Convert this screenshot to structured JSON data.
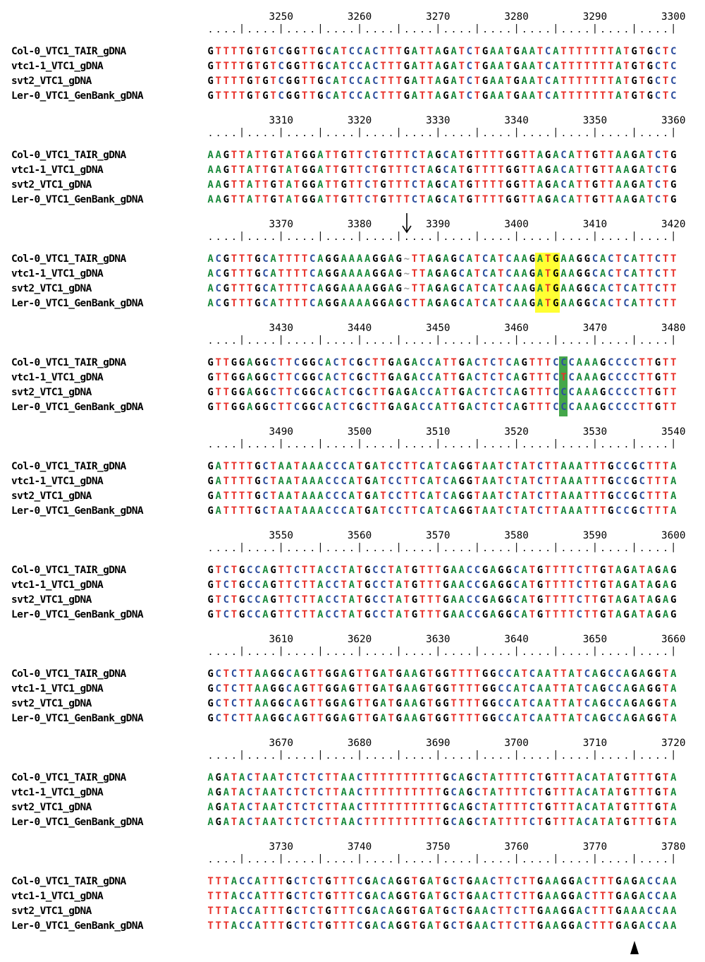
{
  "sequence_names": [
    "Col-0_VTC1_TAIR_gDNA",
    "vtc1-1_VTC1_gDNA",
    "svt2_VTC1_gDNA",
    "Ler-0_VTC1_GenBank_gDNA"
  ],
  "ruler_pattern": "....|....|....|....|....|....|....|....|....|....|....|....|",
  "base_colors": {
    "A": "#1a8a3c",
    "T": "#e8312a",
    "G": "#000000",
    "C": "#2e4f9e",
    "~": "#999999"
  },
  "highlight_colors": {
    "start_codon": "#ffff33",
    "snp": "#44a64a"
  },
  "blocks": [
    {
      "positions": [
        "3250",
        "3260",
        "3270",
        "3280",
        "3290",
        "3300"
      ],
      "rows": [
        "GTTTTGTGTCGGTTGCATCCACTTTGATTAGATCTGAATGAATCATTTTTTTATGTGCTC",
        "GTTTTGTGTCGGTTGCATCCACTTTGATTAGATCTGAATGAATCATTTTTTTATGTGCTC",
        "GTTTTGTGTCGGTTGCATCCACTTTGATTAGATCTGAATGAATCATTTTTTTATGTGCTC",
        "GTTTTGTGTCGGTTGCATCCACTTTGATTAGATCTGAATGAATCATTTTTTTATGTGCTC"
      ]
    },
    {
      "positions": [
        "3310",
        "3320",
        "3330",
        "3340",
        "3350",
        "3360"
      ],
      "rows": [
        "AAGTTATTGTATGGATTGTTCTGTTTCTAGCATGTTTTGGTTAGACATTGTTAAGATCTG",
        "AAGTTATTGTATGGATTGTTCTGTTTCTAGCATGTTTTGGTTAGACATTGTTAAGATCTG",
        "AAGTTATTGTATGGATTGTTCTGTTTCTAGCATGTTTTGGTTAGACATTGTTAAGATCTG",
        "AAGTTATTGTATGGATTGTTCTGTTTCTAGCATGTTTTGGTTAGACATTGTTAAGATCTG"
      ]
    },
    {
      "positions": [
        "3370",
        "3380",
        "3390",
        "3400",
        "3410",
        "3420"
      ],
      "rows": [
        "ACGTTTGCATTTTCAGGAAAAGGAG~TTAGAGCATCATCAAGATGAAGGCACTCATTCTT",
        "ACGTTTGCATTTTCAGGAAAAGGAG~TTAGAGCATCATCAAGATGAAGGCACTCATTCTT",
        "ACGTTTGCATTTTCAGGAAAAGGAG~TTAGAGCATCATCAAGATGAAGGCACTCATTCTT",
        "ACGTTTGCATTTTCAGGAAAAGGAGCTTAGAGCATCATCAAGATGAAGGCACTCATTCTT"
      ],
      "highlight": {
        "type": "start_codon",
        "col_start": 42,
        "col_end": 44
      },
      "arrow_col": 25
    },
    {
      "positions": [
        "3430",
        "3440",
        "3450",
        "3460",
        "3470",
        "3480"
      ],
      "rows": [
        "GTTGGAGGCTTCGGCACTCGCTTGAGACCATTGACTCTCAGTTTCCCAAAGCCCCTTGTT",
        "GTTGGAGGCTTCGGCACTCGCTTGAGACCATTGACTCTCAGTTTCTCAAAGCCCCTTGTT",
        "GTTGGAGGCTTCGGCACTCGCTTGAGACCATTGACTCTCAGTTTCCCAAAGCCCCTTGTT",
        "GTTGGAGGCTTCGGCACTCGCTTGAGACCATTGACTCTCAGTTTCCCAAAGCCCCTTGTT"
      ],
      "highlight": {
        "type": "snp",
        "col_start": 45,
        "col_end": 45
      }
    },
    {
      "positions": [
        "3490",
        "3500",
        "3510",
        "3520",
        "3530",
        "3540"
      ],
      "rows": [
        "GATTTTGCTAATAAACCCATGATCCTTCATCAGGTAATCTATCTTAAATTTGCCGCTTTA",
        "GATTTTGCTAATAAACCCATGATCCTTCATCAGGTAATCTATCTTAAATTTGCCGCTTTA",
        "GATTTTGCTAATAAACCCATGATCCTTCATCAGGTAATCTATCTTAAATTTGCCGCTTTA",
        "GATTTTGCTAATAAACCCATGATCCTTCATCAGGTAATCTATCTTAAATTTGCCGCTTTA"
      ]
    },
    {
      "positions": [
        "3550",
        "3560",
        "3570",
        "3580",
        "3590",
        "3600"
      ],
      "rows": [
        "GTCTGCCAGTTCTTACCTATGCCTATGTTTGAACCGAGGCATGTTTTCTTGTAGATAGAG",
        "GTCTGCCAGTTCTTACCTATGCCTATGTTTGAACCGAGGCATGTTTTCTTGTAGATAGAG",
        "GTCTGCCAGTTCTTACCTATGCCTATGTTTGAACCGAGGCATGTTTTCTTGTAGATAGAG",
        "GTCTGCCAGTTCTTACCTATGCCTATGTTTGAACCGAGGCATGTTTTCTTGTAGATAGAG"
      ]
    },
    {
      "positions": [
        "3610",
        "3620",
        "3630",
        "3640",
        "3650",
        "3660"
      ],
      "rows": [
        "GCTCTTAAGGCAGTTGGAGTTGATGAAGTGGTTTTGGCCATCAATTATCAGCCAGAGGTA",
        "GCTCTTAAGGCAGTTGGAGTTGATGAAGTGGTTTTGGCCATCAATTATCAGCCAGAGGTA",
        "GCTCTTAAGGCAGTTGGAGTTGATGAAGTGGTTTTGGCCATCAATTATCAGCCAGAGGTA",
        "GCTCTTAAGGCAGTTGGAGTTGATGAAGTGGTTTTGGCCATCAATTATCAGCCAGAGGTA"
      ]
    },
    {
      "positions": [
        "3670",
        "3680",
        "3690",
        "3700",
        "3710",
        "3720"
      ],
      "rows": [
        "AGATACTAATCTCTCTTAACTTTTTTTTTTGCAGCTATTTTCTGTTTACATATGTTTGTA",
        "AGATACTAATCTCTCTTAACTTTTTTTTTTGCAGCTATTTTCTGTTTACATATGTTTGTA",
        "AGATACTAATCTCTCTTAACTTTTTTTTTTGCAGCTATTTTCTGTTTACATATGTTTGTA",
        "AGATACTAATCTCTCTTAACTTTTTTTTTTGCAGCTATTTTCTGTTTACATATGTTTGTA"
      ]
    },
    {
      "positions": [
        "3730",
        "3740",
        "3750",
        "3760",
        "3770",
        "3780"
      ],
      "rows": [
        "TTTACCATTTGCTCTGTTTCGACAGGTGATGCTGAACTTCTTGAAGGACTTTGAGACCAA",
        "TTTACCATTTGCTCTGTTTCGACAGGTGATGCTGAACTTCTTGAAGGACTTTGAGACCAA",
        "TTTACCATTTGCTCTGTTTCGACAGGTGATGCTGAACTTCTTGAAGGACTTTGAAACCAA",
        "TTTACCATTTGCTCTGTTTCGACAGGTGATGCTGAACTTCTTGAAGGACTTTGAGACCAA"
      ],
      "triangle_col": 54
    }
  ]
}
